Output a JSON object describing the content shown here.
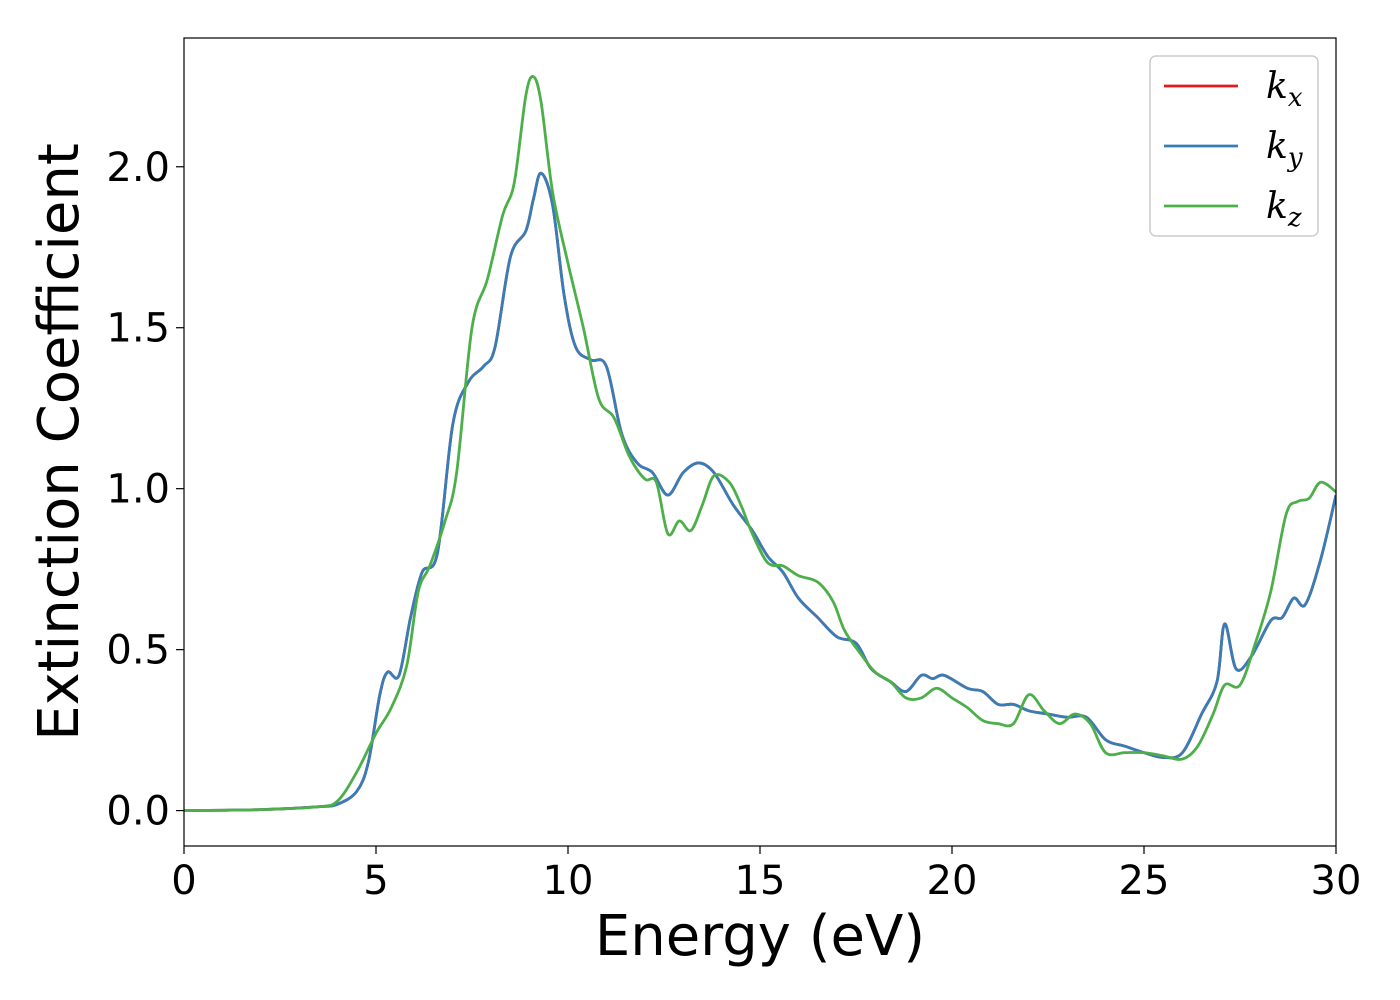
{
  "chart_data": {
    "type": "line",
    "title": "",
    "xlabel": "Energy (eV)",
    "ylabel": "Extinction Coefficient",
    "xlim": [
      0,
      30
    ],
    "ylim": [
      -0.11,
      2.4
    ],
    "xticks": [
      0,
      5,
      10,
      15,
      20,
      25,
      30
    ],
    "xtick_labels": [
      "0",
      "5",
      "10",
      "15",
      "20",
      "25",
      "30"
    ],
    "yticks": [
      0.0,
      0.5,
      1.0,
      1.5,
      2.0
    ],
    "ytick_labels": [
      "0.0",
      "0.5",
      "1.0",
      "1.5",
      "2.0"
    ],
    "grid": false,
    "legend_position": "top-right",
    "legend": [
      {
        "base": "k",
        "sub": "x",
        "color": "#e41a1c"
      },
      {
        "base": "k",
        "sub": "y",
        "color": "#377eb8"
      },
      {
        "base": "k",
        "sub": "z",
        "color": "#4daf4a"
      }
    ],
    "series": [
      {
        "name": "kx",
        "color": "#e41a1c",
        "points": [
          [
            0,
            0
          ],
          [
            2,
            0.003
          ],
          [
            3.5,
            0.012
          ],
          [
            4,
            0.02
          ],
          [
            4.5,
            0.06
          ],
          [
            4.8,
            0.15
          ],
          [
            5.1,
            0.36
          ],
          [
            5.3,
            0.43
          ],
          [
            5.6,
            0.42
          ],
          [
            5.9,
            0.6
          ],
          [
            6.2,
            0.74
          ],
          [
            6.6,
            0.8
          ],
          [
            7.0,
            1.2
          ],
          [
            7.4,
            1.33
          ],
          [
            7.8,
            1.38
          ],
          [
            8.1,
            1.44
          ],
          [
            8.5,
            1.72
          ],
          [
            8.9,
            1.8
          ],
          [
            9.1,
            1.9
          ],
          [
            9.3,
            1.98
          ],
          [
            9.6,
            1.88
          ],
          [
            9.9,
            1.6
          ],
          [
            10.2,
            1.44
          ],
          [
            10.6,
            1.4
          ],
          [
            11.0,
            1.38
          ],
          [
            11.4,
            1.17
          ],
          [
            11.8,
            1.08
          ],
          [
            12.2,
            1.05
          ],
          [
            12.6,
            0.98
          ],
          [
            13.0,
            1.05
          ],
          [
            13.4,
            1.08
          ],
          [
            13.8,
            1.05
          ],
          [
            14.3,
            0.95
          ],
          [
            14.8,
            0.87
          ],
          [
            15.2,
            0.79
          ],
          [
            15.6,
            0.74
          ],
          [
            16.0,
            0.66
          ],
          [
            16.5,
            0.6
          ],
          [
            17.0,
            0.54
          ],
          [
            17.5,
            0.52
          ],
          [
            17.9,
            0.44
          ],
          [
            18.4,
            0.4
          ],
          [
            18.8,
            0.37
          ],
          [
            19.2,
            0.42
          ],
          [
            19.5,
            0.41
          ],
          [
            19.8,
            0.42
          ],
          [
            20.4,
            0.38
          ],
          [
            20.8,
            0.37
          ],
          [
            21.2,
            0.33
          ],
          [
            21.6,
            0.33
          ],
          [
            22.0,
            0.31
          ],
          [
            22.5,
            0.3
          ],
          [
            23.0,
            0.29
          ],
          [
            23.5,
            0.29
          ],
          [
            24.0,
            0.22
          ],
          [
            24.5,
            0.2
          ],
          [
            25.0,
            0.18
          ],
          [
            25.5,
            0.165
          ],
          [
            26.0,
            0.18
          ],
          [
            26.5,
            0.3
          ],
          [
            26.9,
            0.4
          ],
          [
            27.1,
            0.58
          ],
          [
            27.4,
            0.44
          ],
          [
            27.8,
            0.48
          ],
          [
            28.3,
            0.59
          ],
          [
            28.6,
            0.6
          ],
          [
            28.9,
            0.66
          ],
          [
            29.2,
            0.64
          ],
          [
            29.6,
            0.78
          ],
          [
            30,
            0.98
          ]
        ]
      },
      {
        "name": "ky",
        "color": "#377eb8",
        "points": [
          [
            0,
            0
          ],
          [
            2,
            0.003
          ],
          [
            3.5,
            0.012
          ],
          [
            4,
            0.02
          ],
          [
            4.5,
            0.06
          ],
          [
            4.8,
            0.15
          ],
          [
            5.1,
            0.36
          ],
          [
            5.3,
            0.43
          ],
          [
            5.6,
            0.42
          ],
          [
            5.9,
            0.6
          ],
          [
            6.2,
            0.74
          ],
          [
            6.6,
            0.8
          ],
          [
            7.0,
            1.2
          ],
          [
            7.4,
            1.33
          ],
          [
            7.8,
            1.38
          ],
          [
            8.1,
            1.44
          ],
          [
            8.5,
            1.72
          ],
          [
            8.9,
            1.8
          ],
          [
            9.1,
            1.9
          ],
          [
            9.3,
            1.98
          ],
          [
            9.6,
            1.88
          ],
          [
            9.9,
            1.6
          ],
          [
            10.2,
            1.44
          ],
          [
            10.6,
            1.4
          ],
          [
            11.0,
            1.38
          ],
          [
            11.4,
            1.17
          ],
          [
            11.8,
            1.08
          ],
          [
            12.2,
            1.05
          ],
          [
            12.6,
            0.98
          ],
          [
            13.0,
            1.05
          ],
          [
            13.4,
            1.08
          ],
          [
            13.8,
            1.05
          ],
          [
            14.3,
            0.95
          ],
          [
            14.8,
            0.87
          ],
          [
            15.2,
            0.79
          ],
          [
            15.6,
            0.74
          ],
          [
            16.0,
            0.66
          ],
          [
            16.5,
            0.6
          ],
          [
            17.0,
            0.54
          ],
          [
            17.5,
            0.52
          ],
          [
            17.9,
            0.44
          ],
          [
            18.4,
            0.4
          ],
          [
            18.8,
            0.37
          ],
          [
            19.2,
            0.42
          ],
          [
            19.5,
            0.41
          ],
          [
            19.8,
            0.42
          ],
          [
            20.4,
            0.38
          ],
          [
            20.8,
            0.37
          ],
          [
            21.2,
            0.33
          ],
          [
            21.6,
            0.33
          ],
          [
            22.0,
            0.31
          ],
          [
            22.5,
            0.3
          ],
          [
            23.0,
            0.29
          ],
          [
            23.5,
            0.29
          ],
          [
            24.0,
            0.22
          ],
          [
            24.5,
            0.2
          ],
          [
            25.0,
            0.18
          ],
          [
            25.5,
            0.165
          ],
          [
            26.0,
            0.18
          ],
          [
            26.5,
            0.3
          ],
          [
            26.9,
            0.4
          ],
          [
            27.1,
            0.58
          ],
          [
            27.4,
            0.44
          ],
          [
            27.8,
            0.48
          ],
          [
            28.3,
            0.59
          ],
          [
            28.6,
            0.6
          ],
          [
            28.9,
            0.66
          ],
          [
            29.2,
            0.64
          ],
          [
            29.6,
            0.78
          ],
          [
            30,
            0.98
          ]
        ]
      },
      {
        "name": "kz",
        "color": "#4daf4a",
        "points": [
          [
            0,
            0
          ],
          [
            2,
            0.003
          ],
          [
            3.5,
            0.012
          ],
          [
            4,
            0.03
          ],
          [
            4.5,
            0.12
          ],
          [
            5.0,
            0.24
          ],
          [
            5.4,
            0.32
          ],
          [
            5.8,
            0.45
          ],
          [
            6.1,
            0.68
          ],
          [
            6.4,
            0.76
          ],
          [
            6.8,
            0.9
          ],
          [
            7.1,
            1.05
          ],
          [
            7.5,
            1.5
          ],
          [
            7.9,
            1.65
          ],
          [
            8.3,
            1.85
          ],
          [
            8.6,
            1.95
          ],
          [
            8.9,
            2.22
          ],
          [
            9.1,
            2.28
          ],
          [
            9.3,
            2.2
          ],
          [
            9.6,
            1.92
          ],
          [
            10.0,
            1.7
          ],
          [
            10.4,
            1.5
          ],
          [
            10.8,
            1.28
          ],
          [
            11.2,
            1.22
          ],
          [
            11.6,
            1.1
          ],
          [
            12.0,
            1.03
          ],
          [
            12.3,
            1.02
          ],
          [
            12.6,
            0.86
          ],
          [
            12.9,
            0.9
          ],
          [
            13.2,
            0.87
          ],
          [
            13.5,
            0.95
          ],
          [
            13.8,
            1.04
          ],
          [
            14.2,
            1.02
          ],
          [
            14.5,
            0.95
          ],
          [
            14.8,
            0.86
          ],
          [
            15.2,
            0.77
          ],
          [
            15.6,
            0.76
          ],
          [
            16.0,
            0.73
          ],
          [
            16.5,
            0.71
          ],
          [
            16.9,
            0.65
          ],
          [
            17.2,
            0.56
          ],
          [
            17.6,
            0.49
          ],
          [
            18.0,
            0.43
          ],
          [
            18.4,
            0.4
          ],
          [
            18.8,
            0.35
          ],
          [
            19.2,
            0.35
          ],
          [
            19.6,
            0.38
          ],
          [
            20.0,
            0.35
          ],
          [
            20.4,
            0.32
          ],
          [
            20.8,
            0.28
          ],
          [
            21.2,
            0.27
          ],
          [
            21.6,
            0.27
          ],
          [
            22.0,
            0.36
          ],
          [
            22.4,
            0.31
          ],
          [
            22.8,
            0.27
          ],
          [
            23.2,
            0.3
          ],
          [
            23.6,
            0.27
          ],
          [
            24.0,
            0.18
          ],
          [
            24.5,
            0.18
          ],
          [
            25.0,
            0.18
          ],
          [
            25.5,
            0.17
          ],
          [
            26.0,
            0.16
          ],
          [
            26.4,
            0.2
          ],
          [
            26.8,
            0.3
          ],
          [
            27.1,
            0.39
          ],
          [
            27.5,
            0.39
          ],
          [
            27.9,
            0.52
          ],
          [
            28.3,
            0.68
          ],
          [
            28.7,
            0.92
          ],
          [
            29.0,
            0.96
          ],
          [
            29.3,
            0.97
          ],
          [
            29.6,
            1.02
          ],
          [
            30,
            0.99
          ]
        ]
      }
    ]
  }
}
